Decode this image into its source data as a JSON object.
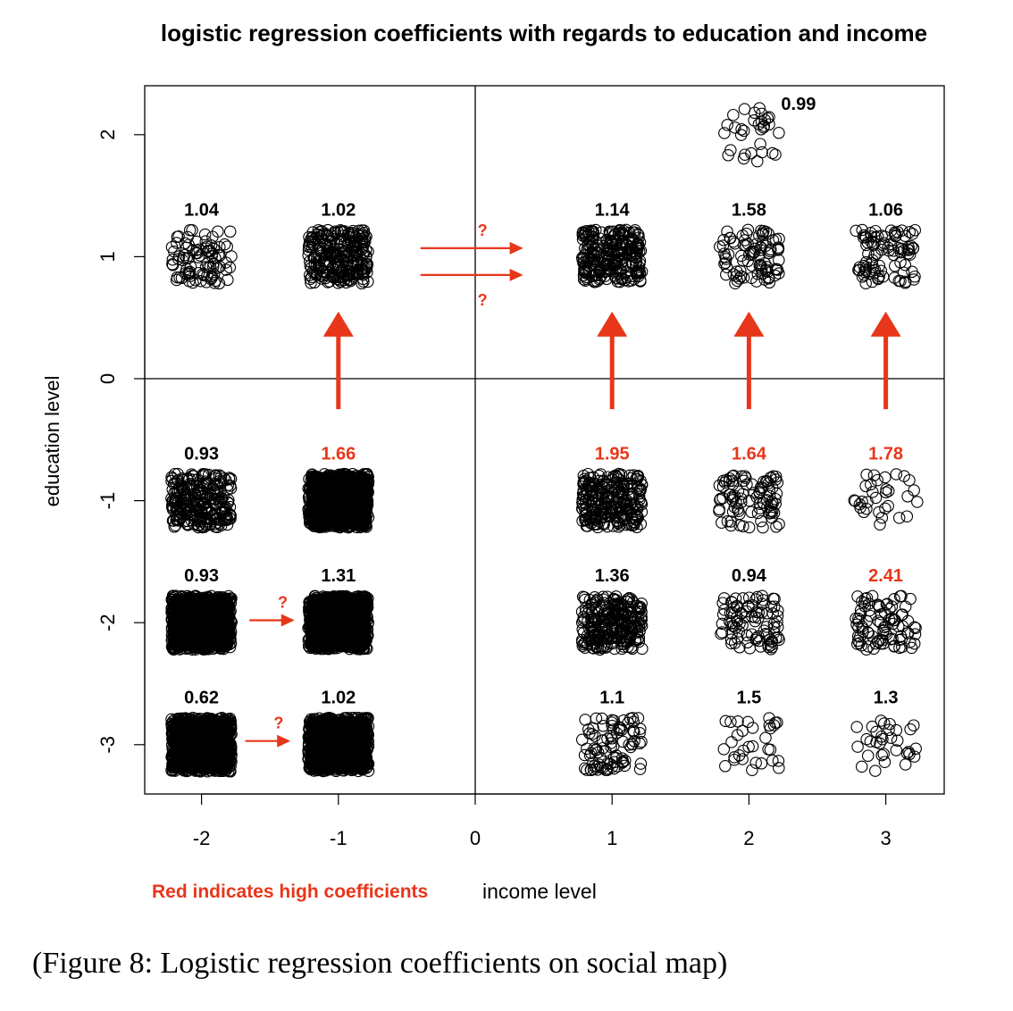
{
  "colors": {
    "high": "#e8361a",
    "normal": "#000000",
    "background": "#ffffff"
  },
  "chart_data": {
    "type": "scatter",
    "title": "logistic regression coefficients with regards to education and income",
    "xlabel": "income level",
    "ylabel": "education level",
    "legend_note": "Red indicates high coefficients",
    "xlim": [
      -2.5,
      3.5
    ],
    "ylim": [
      -3.45,
      2.35
    ],
    "xticks": [
      -2,
      -1,
      0,
      1,
      2,
      3
    ],
    "yticks": [
      -3,
      -2,
      -1,
      0,
      1,
      2
    ],
    "reference_lines": {
      "x": 0,
      "y": 0
    },
    "clusters": [
      {
        "income": 2,
        "education": 2,
        "coefficient": "0.99",
        "high": false,
        "density": "sparse"
      },
      {
        "income": -2,
        "education": 1,
        "coefficient": "1.04",
        "high": false,
        "density": "medium"
      },
      {
        "income": -1,
        "education": 1,
        "coefficient": "1.02",
        "high": false,
        "density": "dense"
      },
      {
        "income": 1,
        "education": 1,
        "coefficient": "1.14",
        "high": false,
        "density": "dense"
      },
      {
        "income": 2,
        "education": 1,
        "coefficient": "1.58",
        "high": false,
        "density": "medium"
      },
      {
        "income": 3,
        "education": 1,
        "coefficient": "1.06",
        "high": false,
        "density": "medium"
      },
      {
        "income": -2,
        "education": -1,
        "coefficient": "0.93",
        "high": false,
        "density": "dense"
      },
      {
        "income": -1,
        "education": -1,
        "coefficient": "1.66",
        "high": true,
        "density": "solid"
      },
      {
        "income": 1,
        "education": -1,
        "coefficient": "1.95",
        "high": true,
        "density": "dense"
      },
      {
        "income": 2,
        "education": -1,
        "coefficient": "1.64",
        "high": true,
        "density": "medium"
      },
      {
        "income": 3,
        "education": -1,
        "coefficient": "1.78",
        "high": true,
        "density": "sparse"
      },
      {
        "income": -2,
        "education": -2,
        "coefficient": "0.93",
        "high": false,
        "density": "solid"
      },
      {
        "income": -1,
        "education": -2,
        "coefficient": "1.31",
        "high": false,
        "density": "solid"
      },
      {
        "income": 1,
        "education": -2,
        "coefficient": "1.36",
        "high": false,
        "density": "dense"
      },
      {
        "income": 2,
        "education": -2,
        "coefficient": "0.94",
        "high": false,
        "density": "medium"
      },
      {
        "income": 3,
        "education": -2,
        "coefficient": "2.41",
        "high": true,
        "density": "medium"
      },
      {
        "income": -2,
        "education": -3,
        "coefficient": "0.62",
        "high": false,
        "density": "solid"
      },
      {
        "income": -1,
        "education": -3,
        "coefficient": "1.02",
        "high": false,
        "density": "solid"
      },
      {
        "income": 1,
        "education": -3,
        "coefficient": "1.1",
        "high": false,
        "density": "medium"
      },
      {
        "income": 2,
        "education": -3,
        "coefficient": "1.5",
        "high": false,
        "density": "sparse"
      },
      {
        "income": 3,
        "education": -3,
        "coefficient": "1.3",
        "high": false,
        "density": "sparse"
      }
    ],
    "annotations": [
      {
        "kind": "up-arrow",
        "from": [
          -1,
          -0.25
        ],
        "to": [
          -1,
          0.55
        ]
      },
      {
        "kind": "up-arrow",
        "from": [
          1,
          -0.25
        ],
        "to": [
          1,
          0.55
        ]
      },
      {
        "kind": "up-arrow",
        "from": [
          2,
          -0.25
        ],
        "to": [
          2,
          0.55
        ]
      },
      {
        "kind": "up-arrow",
        "from": [
          3,
          -0.25
        ],
        "to": [
          3,
          0.55
        ]
      },
      {
        "kind": "right-arrow",
        "from": [
          -0.4,
          1.07
        ],
        "to": [
          0.35,
          1.07
        ],
        "label": "?",
        "label_pos": "above"
      },
      {
        "kind": "right-arrow",
        "from": [
          -0.4,
          0.85
        ],
        "to": [
          0.35,
          0.85
        ],
        "label": "?",
        "label_pos": "below"
      },
      {
        "kind": "right-arrow",
        "from": [
          -1.65,
          -1.98
        ],
        "to": [
          -1.32,
          -1.98
        ],
        "label": "?",
        "label_pos": "above"
      },
      {
        "kind": "right-arrow",
        "from": [
          -1.68,
          -2.97
        ],
        "to": [
          -1.35,
          -2.97
        ],
        "label": "?",
        "label_pos": "above"
      }
    ]
  },
  "caption": "(Figure 8: Logistic regression coefficients on social map)"
}
